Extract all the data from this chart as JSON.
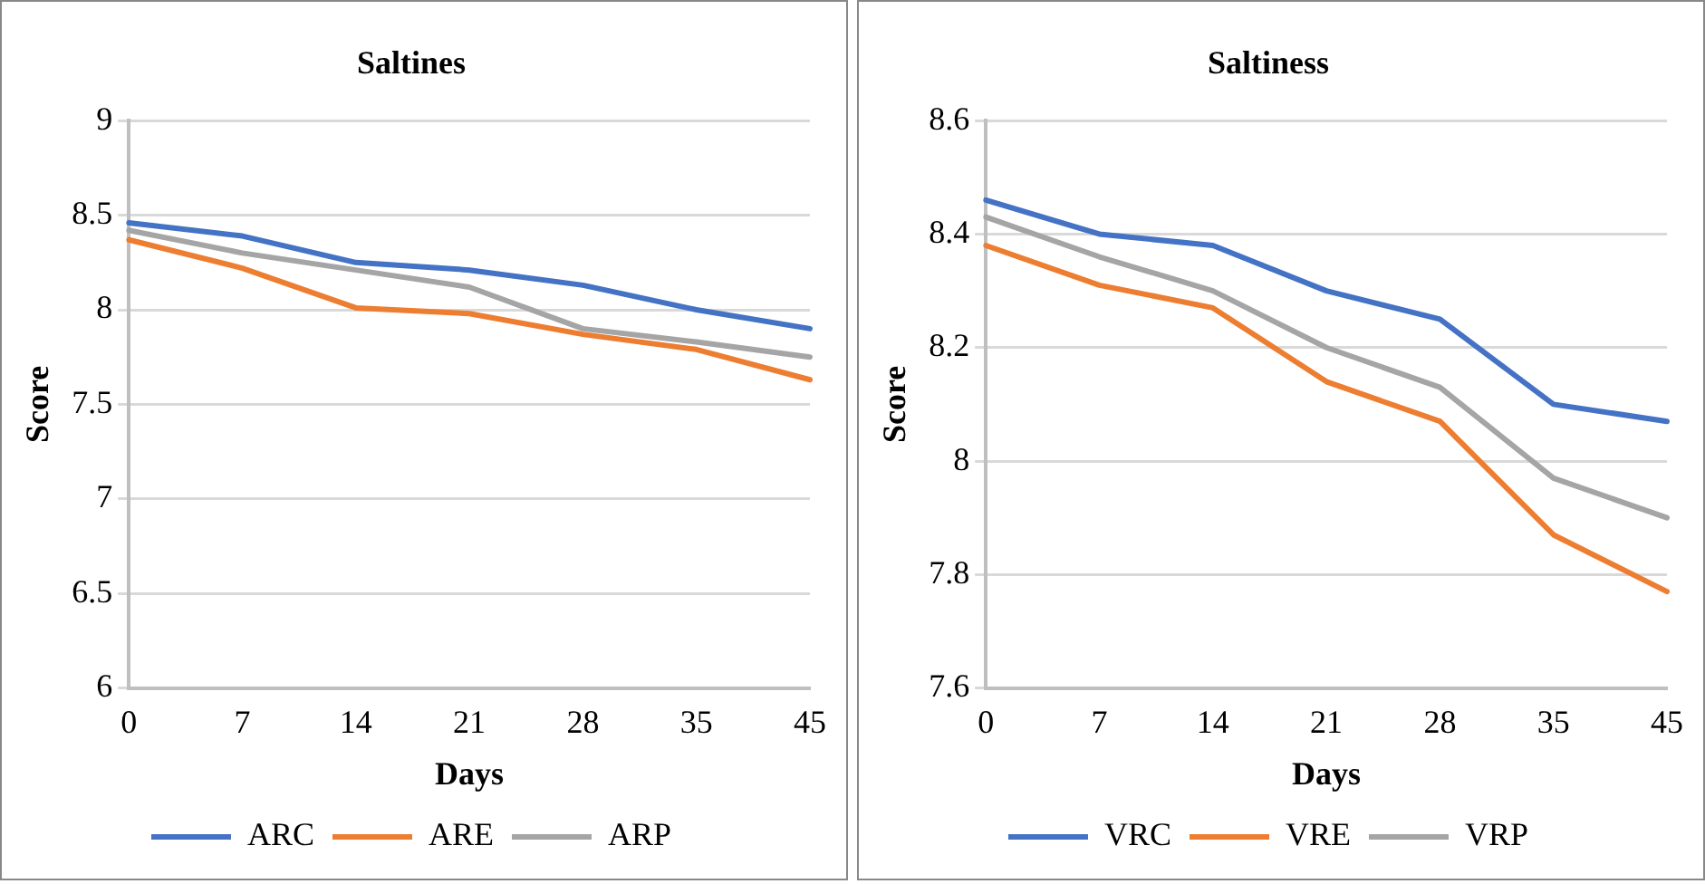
{
  "chart_data": [
    {
      "type": "line",
      "title": "Saltines",
      "xlabel": "Days",
      "ylabel": "Score",
      "categories": [
        "0",
        "7",
        "14",
        "21",
        "28",
        "35",
        "45"
      ],
      "series": [
        {
          "name": "ARC",
          "color": "#4472c4",
          "values": [
            8.46,
            8.39,
            8.25,
            8.21,
            8.13,
            8.0,
            7.9
          ]
        },
        {
          "name": "ARE",
          "color": "#ed7d31",
          "values": [
            8.37,
            8.22,
            8.01,
            7.98,
            7.87,
            7.79,
            7.63
          ]
        },
        {
          "name": "ARP",
          "color": "#a5a5a5",
          "values": [
            8.42,
            8.3,
            8.21,
            8.12,
            7.9,
            7.83,
            7.75
          ]
        }
      ],
      "ylim": [
        6,
        9
      ],
      "yticks": [
        6,
        6.5,
        7,
        7.5,
        8,
        8.5,
        9
      ],
      "grid": "y",
      "legend": "bottom",
      "marker": "none"
    },
    {
      "type": "line",
      "title": "Saltiness",
      "xlabel": "Days",
      "ylabel": "Score",
      "categories": [
        "0",
        "7",
        "14",
        "21",
        "28",
        "35",
        "45"
      ],
      "series": [
        {
          "name": "VRC",
          "color": "#4472c4",
          "values": [
            8.46,
            8.4,
            8.38,
            8.3,
            8.25,
            8.1,
            8.07
          ]
        },
        {
          "name": "VRE",
          "color": "#ed7d31",
          "values": [
            8.38,
            8.31,
            8.27,
            8.14,
            8.07,
            7.87,
            7.77
          ]
        },
        {
          "name": "VRP",
          "color": "#a5a5a5",
          "values": [
            8.43,
            8.36,
            8.3,
            8.2,
            8.13,
            7.97,
            7.9
          ]
        }
      ],
      "ylim": [
        7.6,
        8.6
      ],
      "yticks": [
        7.6,
        7.8,
        8,
        8.2,
        8.4,
        8.6
      ],
      "grid": "y",
      "legend": "bottom",
      "marker": "none"
    }
  ]
}
